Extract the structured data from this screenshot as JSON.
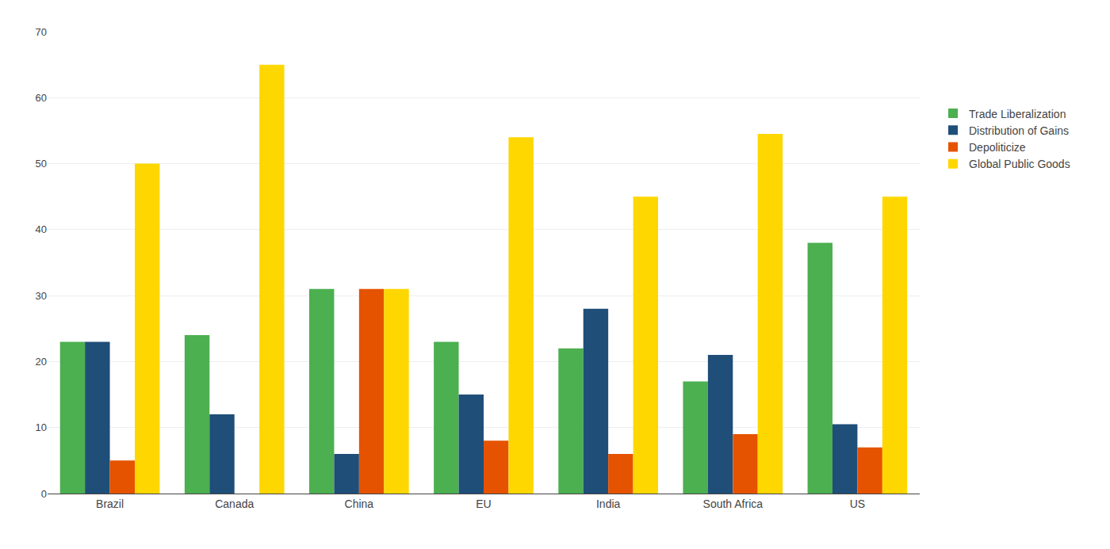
{
  "chart_data": {
    "type": "bar",
    "categories": [
      "Brazil",
      "Canada",
      "China",
      "EU",
      "India",
      "South Africa",
      "US"
    ],
    "series": [
      {
        "name": "Trade Liberalization",
        "color": "#4CAF50",
        "values": [
          23,
          24,
          31,
          23,
          22,
          17,
          38
        ]
      },
      {
        "name": "Distribution of Gains",
        "color": "#1F4E79",
        "values": [
          23,
          12,
          6,
          15,
          28,
          21,
          10.5
        ]
      },
      {
        "name": "Depoliticize",
        "color": "#E55300",
        "values": [
          5,
          0,
          31,
          8,
          6,
          9,
          7
        ]
      },
      {
        "name": "Global Public Goods",
        "color": "#FFD700",
        "values": [
          50,
          65,
          31,
          54,
          45,
          54.5,
          45
        ]
      }
    ],
    "ylim": [
      0,
      70
    ],
    "yticks": [
      0,
      10,
      20,
      30,
      40,
      50,
      60,
      70
    ],
    "grid": true,
    "legend": "right"
  }
}
